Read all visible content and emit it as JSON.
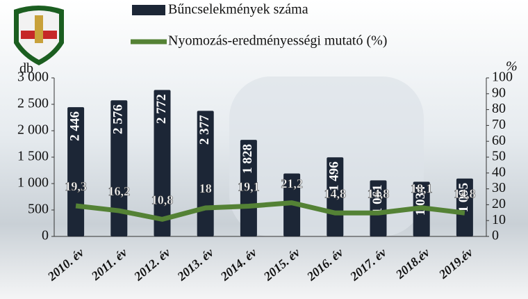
{
  "chart_data": {
    "type": "bar-line",
    "categories": [
      "2010. év",
      "2011. év",
      "2012. év",
      "2013. év",
      "2014. év",
      "2015. év",
      "2016. év",
      "2017. év",
      "2018.év",
      "2019.év"
    ],
    "series": [
      {
        "name": "Bűncselekmények száma",
        "type": "bar",
        "color": "#1c2636",
        "values": [
          2446,
          2576,
          2772,
          2377,
          1828,
          1190,
          1496,
          1061,
          1034,
          1095
        ],
        "value_labels": [
          "2 446",
          "2 576",
          "2 772",
          "2 377",
          "1 828",
          null,
          "1 496",
          "1 061",
          "1 034",
          "1 095"
        ]
      },
      {
        "name": "Nyomozás-eredményességi mutató (%)",
        "type": "line",
        "color": "#548235",
        "axis": "y2",
        "values": [
          19.3,
          16.2,
          10.8,
          18,
          19.1,
          21.2,
          14.8,
          14.8,
          18.1,
          14.8
        ],
        "value_labels": [
          "19,3",
          "16,2",
          "10,8",
          "18",
          "19,1",
          "21,2",
          "14,8",
          "14,8",
          "18,1",
          "14,8"
        ]
      }
    ],
    "y_label": "db",
    "y2_label": "%",
    "ylim": [
      0,
      3000
    ],
    "yticks": [
      0,
      500,
      {
        "value": 1000,
        "label": "1 000"
      },
      {
        "value": 1500,
        "label": "1 500"
      },
      {
        "value": 2000,
        "label": "2 000"
      },
      {
        "value": 2500,
        "label": "2 500"
      },
      {
        "value": 3000,
        "label": "3 000"
      }
    ],
    "y2lim": [
      0,
      100
    ],
    "y2ticks": [
      0,
      10,
      20,
      30,
      40,
      50,
      60,
      70,
      80,
      90,
      100
    ]
  }
}
